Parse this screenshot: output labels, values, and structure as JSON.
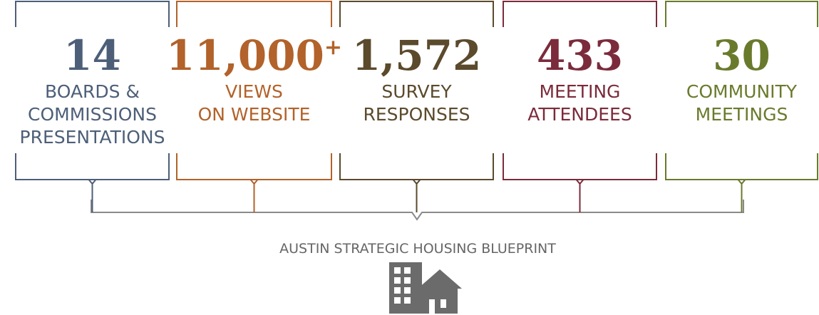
{
  "stats": [
    {
      "number": "14",
      "label": [
        "BOARDS &",
        "COMMISSIONS",
        "PRESENTATIONS"
      ],
      "color": "#4d5f78"
    },
    {
      "number": "11,000",
      "suffix": "+",
      "label": [
        "VIEWS",
        "ON WEBSITE"
      ],
      "color": "#b2622a"
    },
    {
      "number": "1,572",
      "label": [
        "SURVEY",
        "RESPONSES"
      ],
      "color": "#5b4a2c"
    },
    {
      "number": "433",
      "label": [
        "MEETING",
        "ATTENDEES"
      ],
      "color": "#7b2b3b"
    },
    {
      "number": "30",
      "label": [
        "COMMUNITY",
        "MEETINGS"
      ],
      "color": "#6a7a2c"
    }
  ],
  "footer": "AUSTIN STRATEGIC HOUSING BLUEPRINT"
}
